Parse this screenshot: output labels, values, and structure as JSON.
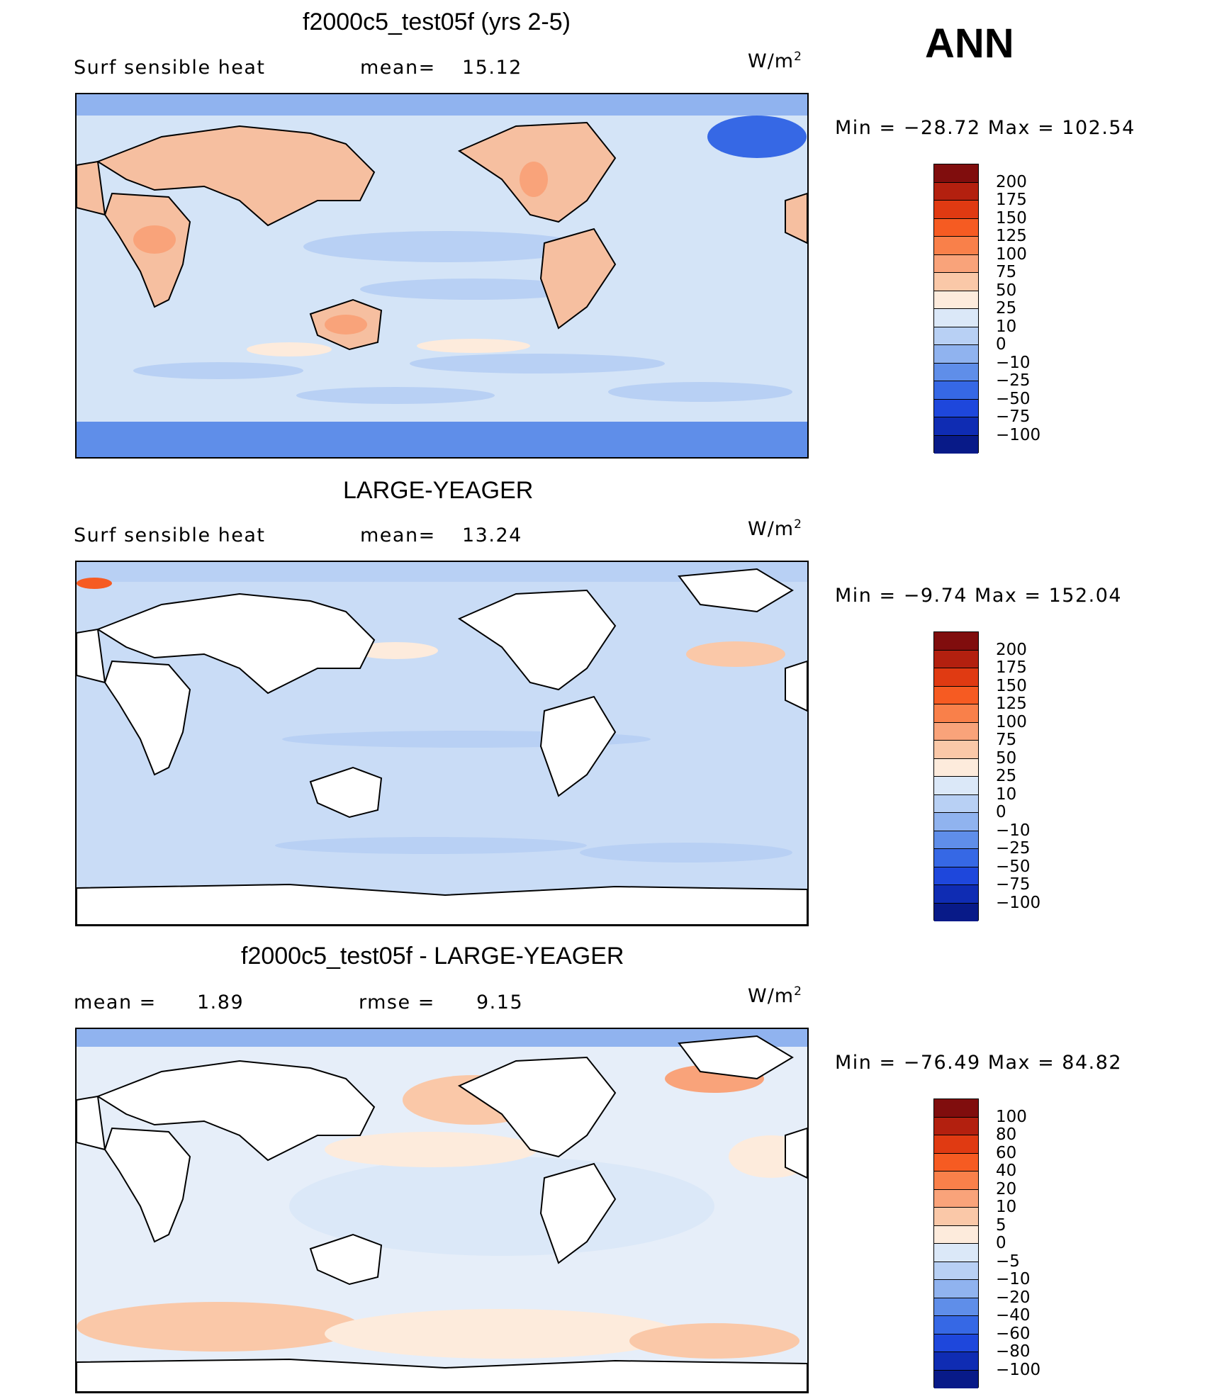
{
  "figure": {
    "season": "ANN"
  },
  "panels": [
    {
      "title": "f2000c5_test05f (yrs 2-5)",
      "left_label": "Surf  sensible  heat",
      "stat_label": "mean=",
      "stat_value": "15.12",
      "units": "W/m",
      "units_sup": "2",
      "minmax": "Min  =  −28.72  Max  =  102.54",
      "ocean_base_color": "#d4e4f7",
      "land_fill": "#f6bfa0",
      "colorbar": {
        "labels": [
          "200",
          "175",
          "150",
          "125",
          "100",
          "75",
          "50",
          "25",
          "10",
          "0",
          "−10",
          "−25",
          "−50",
          "−75",
          "−100"
        ],
        "colors": [
          "#800d0d",
          "#b3200f",
          "#e03a12",
          "#f65b22",
          "#f9804a",
          "#f9a37a",
          "#fac8a8",
          "#fdebdc",
          "#dbe8f8",
          "#b8d0f4",
          "#90b3ef",
          "#5f8ee9",
          "#3668e5",
          "#1e47dc",
          "#0f2cb3",
          "#081a88"
        ]
      }
    },
    {
      "title": "LARGE-YEAGER",
      "left_label": "Surf  sensible  heat",
      "stat_label": "mean=",
      "stat_value": "13.24",
      "units": "W/m",
      "units_sup": "2",
      "minmax": "Min  =   −9.74  Max  =  152.04",
      "ocean_base_color": "#c9dcf6",
      "land_fill": "#ffffff",
      "colorbar": {
        "labels": [
          "200",
          "175",
          "150",
          "125",
          "100",
          "75",
          "50",
          "25",
          "10",
          "0",
          "−10",
          "−25",
          "−50",
          "−75",
          "−100"
        ],
        "colors": [
          "#800d0d",
          "#b3200f",
          "#e03a12",
          "#f65b22",
          "#f9804a",
          "#f9a37a",
          "#fac8a8",
          "#fdebdc",
          "#dbe8f8",
          "#b8d0f4",
          "#90b3ef",
          "#5f8ee9",
          "#3668e5",
          "#1e47dc",
          "#0f2cb3",
          "#081a88"
        ]
      }
    },
    {
      "title": "f2000c5_test05f - LARGE-YEAGER",
      "left_label": "mean  =",
      "left_value": "1.89",
      "stat_label": "rmse  =",
      "stat_value": "9.15",
      "units": "W/m",
      "units_sup": "2",
      "minmax": "Min  =  −76.49  Max  =   84.82",
      "ocean_base_color": "#e6eef9",
      "land_fill": "#ffffff",
      "colorbar": {
        "labels": [
          "100",
          "80",
          "60",
          "40",
          "20",
          "10",
          "5",
          "0",
          "−5",
          "−10",
          "−20",
          "−40",
          "−60",
          "−80",
          "−100"
        ],
        "colors": [
          "#800d0d",
          "#b3200f",
          "#e03a12",
          "#f65b22",
          "#f9804a",
          "#f9a37a",
          "#fac8a8",
          "#fdebdc",
          "#dbe8f8",
          "#b8d0f4",
          "#90b3ef",
          "#5f8ee9",
          "#3668e5",
          "#1e47dc",
          "#0f2cb3",
          "#081a88"
        ]
      }
    }
  ]
}
